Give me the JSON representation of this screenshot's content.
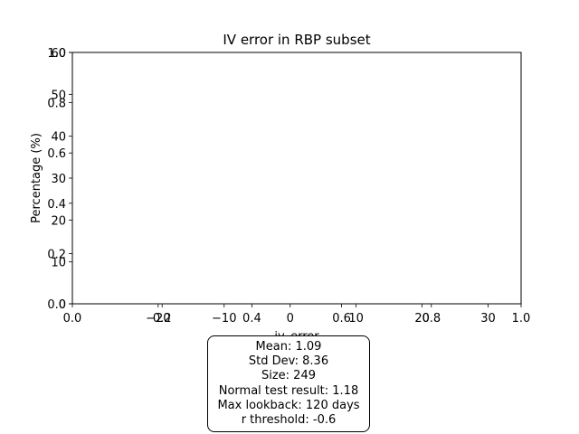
{
  "chart_data": {
    "type": "histogram",
    "title": "IV error in RBP subset",
    "xlabel": "iv_error",
    "ylabel": "Percentage (%)",
    "primary_axes": {
      "xlim": [
        -33,
        35
      ],
      "ylim": [
        0,
        60
      ],
      "xticks": [
        -20,
        -10,
        0,
        10,
        20,
        30
      ],
      "xtick_labels": [
        "−20",
        "−10",
        "0",
        "10",
        "20",
        "30"
      ],
      "yticks": [
        0,
        10,
        20,
        30,
        40,
        50,
        60
      ],
      "ytick_labels": [
        "0",
        "10",
        "20",
        "30",
        "40",
        "50",
        "60"
      ]
    },
    "overlay_axes": {
      "xlim": [
        0,
        1
      ],
      "ylim": [
        0,
        1
      ],
      "xticks": [
        0,
        0.2,
        0.4,
        0.6,
        0.8,
        1
      ],
      "xtick_labels": [
        "0.0",
        "0.2",
        "0.4",
        "0.6",
        "0.8",
        "1.0"
      ],
      "yticks": [
        0,
        0.2,
        0.4,
        0.6,
        0.8,
        1
      ],
      "ytick_labels": [
        "0.0",
        "0.2",
        "0.4",
        "0.6",
        "0.8",
        "1.0"
      ]
    },
    "bins": [],
    "values": [],
    "grid": false,
    "legend": "none"
  },
  "stats": {
    "mean": "Mean: 1.09",
    "std_dev": "Std Dev: 8.36",
    "size": "Size: 249",
    "normal_test": "Normal test result: 1.18",
    "max_lookback": "Max lookback: 120 days",
    "r_threshold": "r threshold: -0.6"
  }
}
